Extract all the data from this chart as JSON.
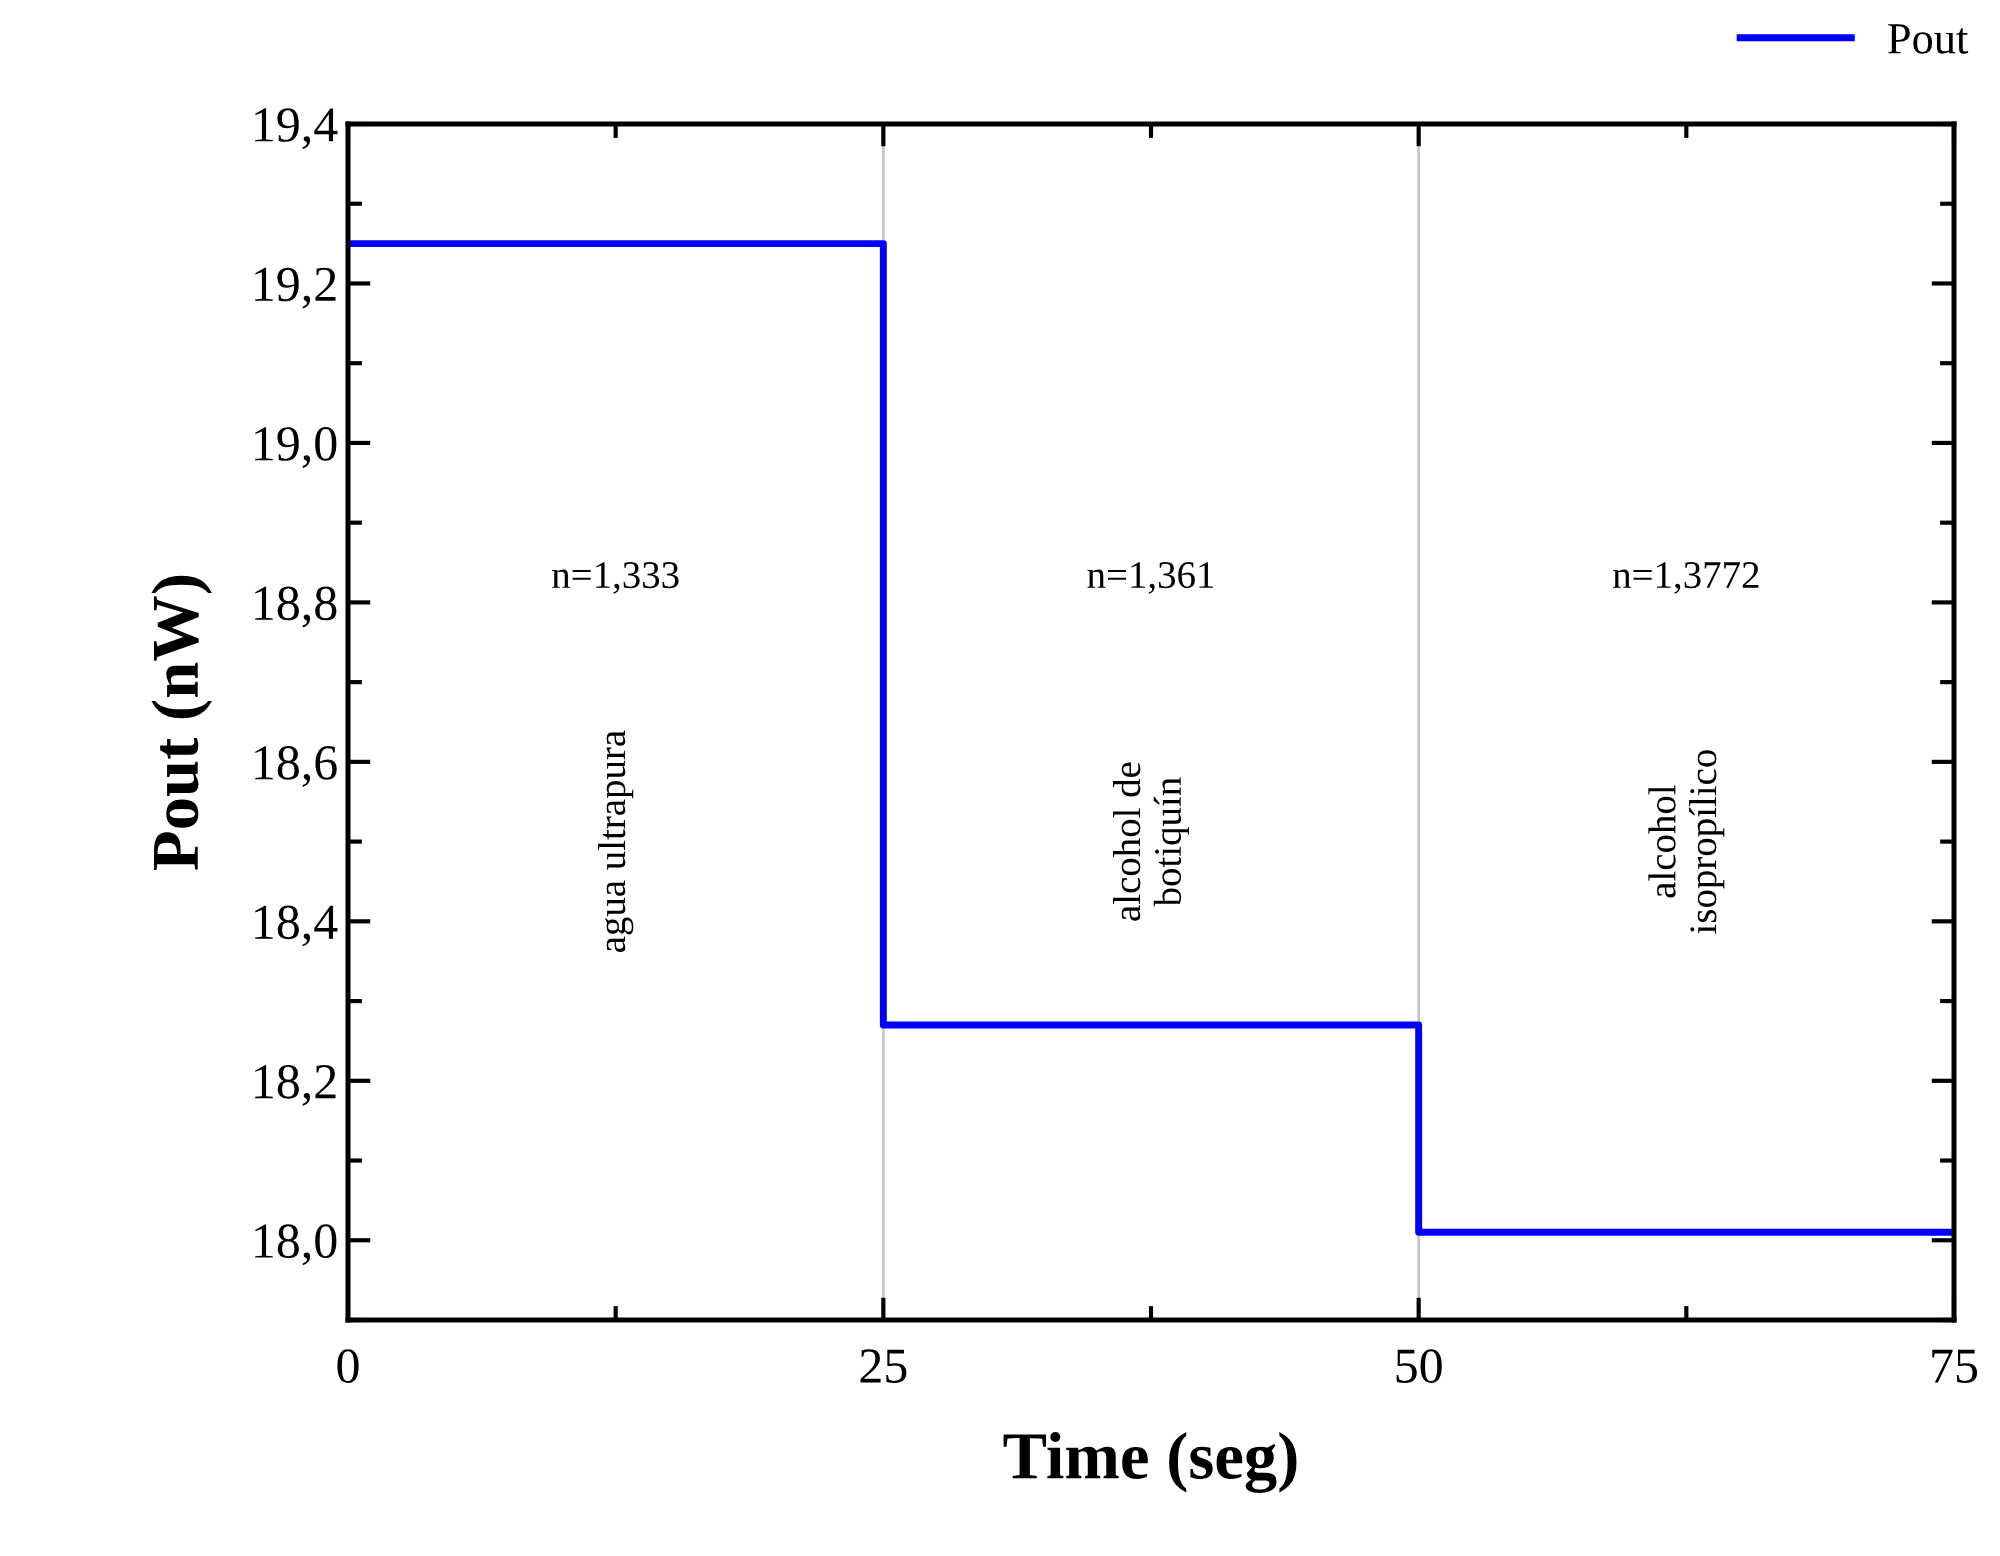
{
  "chart_data": {
    "type": "step",
    "xlabel": "Time (seg)",
    "ylabel": "Pout (nW)",
    "x": [
      0,
      25,
      50,
      75
    ],
    "series": [
      {
        "name": "Pout",
        "color": "#0000ff",
        "values": [
          19.25,
          18.27,
          18.01,
          18.01
        ]
      }
    ],
    "xlim": [
      0,
      75
    ],
    "xticks": [
      0,
      25,
      50,
      75
    ],
    "ylim": [
      17.9,
      19.4
    ],
    "yticks": [
      {
        "value": 18.0,
        "label": "18,0"
      },
      {
        "value": 18.2,
        "label": "18,2"
      },
      {
        "value": 18.4,
        "label": "18,4"
      },
      {
        "value": 18.6,
        "label": "18,6"
      },
      {
        "value": 18.8,
        "label": "18,8"
      },
      {
        "value": 19.0,
        "label": "19,0"
      },
      {
        "value": 19.2,
        "label": "19,2"
      },
      {
        "value": 19.4,
        "label": "19,4"
      }
    ],
    "grid": "x",
    "legend": "top right",
    "line_style": "solid",
    "marker": "none",
    "annotations": [
      "n=1,333",
      "agua ultrapura",
      "n=1,361",
      "alcohol de\nbotiquín",
      "n=1,3772",
      "alcohol\nisopropílico"
    ]
  }
}
